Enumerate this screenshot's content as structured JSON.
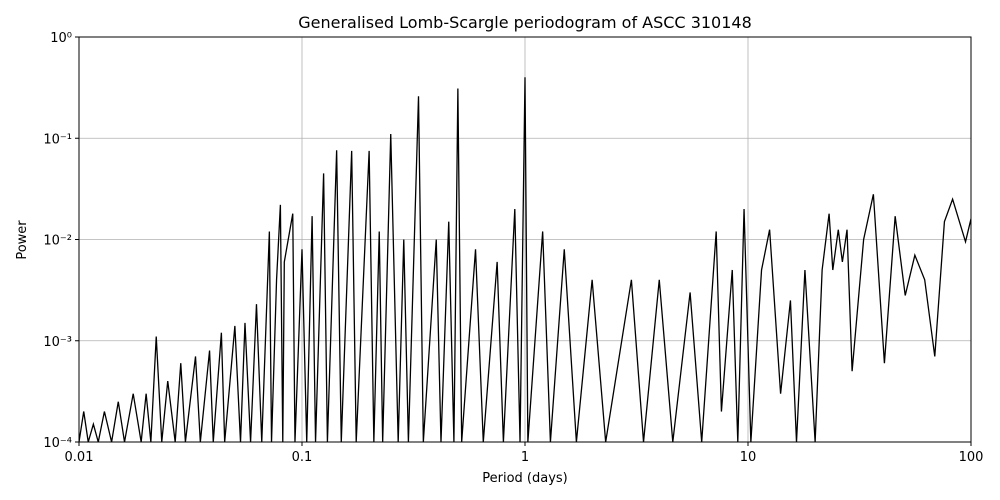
{
  "chart_data": {
    "type": "line",
    "title": "Generalised Lomb-Scargle periodogram of ASCC 310148",
    "x_label": "Period (days)",
    "y_label": "Power",
    "x_scale": "log",
    "y_scale": "log",
    "grid": true,
    "color": "#000000",
    "xlim": [
      0.01,
      100
    ],
    "ylim": [
      0.0001,
      1
    ],
    "xticks": [
      0.01,
      0.1,
      1,
      10,
      100
    ],
    "yticks": [
      {
        "value": 0.0001,
        "label": "10⁻⁴"
      },
      {
        "value": 0.001,
        "label": "10⁻³"
      },
      {
        "value": 0.01,
        "label": "10⁻²"
      },
      {
        "value": 0.1,
        "label": "10⁻¹"
      },
      {
        "value": 1,
        "label": "10⁰"
      }
    ],
    "x": [
      0.01,
      0.0105,
      0.011,
      0.0116,
      0.0122,
      0.013,
      0.014,
      0.015,
      0.016,
      0.0175,
      0.019,
      0.02,
      0.021,
      0.0222,
      0.0235,
      0.025,
      0.027,
      0.0286,
      0.03,
      0.0333,
      0.035,
      0.0385,
      0.04,
      0.0435,
      0.045,
      0.05,
      0.053,
      0.0555,
      0.0588,
      0.0625,
      0.066,
      0.0714,
      0.073,
      0.0769,
      0.08,
      0.082,
      0.0833,
      0.0909,
      0.093,
      0.1,
      0.105,
      0.111,
      0.115,
      0.125,
      0.13,
      0.143,
      0.15,
      0.167,
      0.175,
      0.2,
      0.21,
      0.222,
      0.23,
      0.25,
      0.27,
      0.286,
      0.3,
      0.333,
      0.35,
      0.4,
      0.42,
      0.455,
      0.48,
      0.5,
      0.52,
      0.6,
      0.65,
      0.75,
      0.8,
      0.9,
      0.95,
      1.0,
      1.03,
      1.2,
      1.3,
      1.5,
      1.7,
      2.0,
      2.3,
      3.0,
      3.4,
      4.0,
      4.6,
      5.5,
      6.2,
      7.2,
      7.6,
      8.5,
      9.0,
      9.6,
      10.3,
      11.5,
      12.5,
      14,
      15.5,
      16.5,
      18,
      20,
      21.5,
      23.1,
      24,
      25.4,
      26.5,
      27.8,
      29.3,
      33,
      36.5,
      40.9,
      45.7,
      50.7,
      56,
      62,
      68.8,
      76,
      82.7,
      94.5,
      100
    ],
    "values": [
      0.0001,
      0.0002,
      0.0001,
      0.00015,
      0.0001,
      0.0002,
      0.0001,
      0.00025,
      0.0001,
      0.0003,
      0.0001,
      0.0003,
      0.0001,
      0.0011,
      0.0001,
      0.0004,
      0.0001,
      0.0006,
      0.0001,
      0.0007,
      0.0001,
      0.0008,
      0.0001,
      0.0012,
      0.0001,
      0.0014,
      0.0001,
      0.0015,
      0.0001,
      0.0023,
      0.0001,
      0.012,
      0.0001,
      0.004,
      0.022,
      0.0001,
      0.006,
      0.018,
      0.0001,
      0.008,
      0.0001,
      0.017,
      0.0001,
      0.045,
      0.0001,
      0.076,
      0.0001,
      0.075,
      0.0001,
      0.075,
      0.0001,
      0.012,
      0.0001,
      0.11,
      0.0001,
      0.01,
      0.0001,
      0.26,
      0.0001,
      0.01,
      0.0001,
      0.015,
      0.0001,
      0.31,
      0.0001,
      0.008,
      0.0001,
      0.006,
      0.0001,
      0.02,
      0.0001,
      0.4,
      0.0001,
      0.012,
      0.0001,
      0.008,
      0.0001,
      0.004,
      0.0001,
      0.004,
      0.0001,
      0.004,
      0.0001,
      0.003,
      0.0001,
      0.012,
      0.0002,
      0.005,
      0.0001,
      0.02,
      0.0001,
      0.005,
      0.0125,
      0.0003,
      0.0025,
      0.0001,
      0.005,
      0.0001,
      0.005,
      0.018,
      0.005,
      0.0125,
      0.006,
      0.0125,
      0.0005,
      0.01,
      0.028,
      0.0006,
      0.017,
      0.0028,
      0.007,
      0.004,
      0.0007,
      0.015,
      0.025,
      0.0095,
      0.016
    ]
  }
}
